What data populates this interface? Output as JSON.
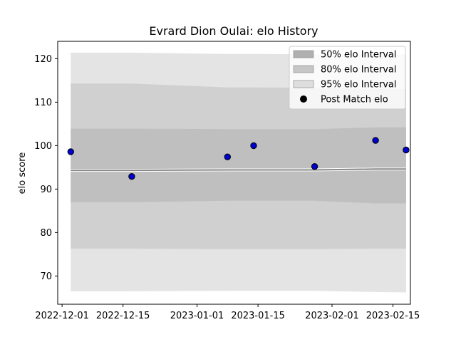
{
  "chart_data": {
    "type": "line",
    "title": "Evrard Dion Oulai: elo History",
    "xlabel": "",
    "ylabel": "elo score",
    "xlim": [
      "2022-11-30",
      "2023-02-19"
    ],
    "ylim": [
      63.5,
      124
    ],
    "x_ticks": [
      "2022-12-01",
      "2022-12-15",
      "2023-01-01",
      "2023-01-15",
      "2023-02-01",
      "2023-02-15"
    ],
    "y_ticks": [
      70,
      80,
      90,
      100,
      110,
      120
    ],
    "grid": false,
    "legend_position": "top-right",
    "series": [
      {
        "name": "95% elo Interval",
        "kind": "band",
        "color": "#e4e4e4",
        "x": [
          "2022-12-03",
          "2022-12-17",
          "2023-01-08",
          "2023-01-14",
          "2023-01-28",
          "2023-02-11",
          "2023-02-18"
        ],
        "lower": [
          66.5,
          66.5,
          66.6,
          66.6,
          66.6,
          66.3,
          66.2
        ],
        "upper": [
          121.4,
          121.4,
          121.1,
          121.1,
          121.0,
          121.0,
          121.0
        ]
      },
      {
        "name": "80% elo Interval",
        "kind": "band",
        "color": "#d0d0d0",
        "x": [
          "2022-12-03",
          "2022-12-17",
          "2023-01-08",
          "2023-01-14",
          "2023-01-28",
          "2023-02-11",
          "2023-02-18"
        ],
        "lower": [
          76.3,
          76.3,
          76.2,
          76.2,
          76.2,
          76.3,
          76.3
        ],
        "upper": [
          114.3,
          114.3,
          113.4,
          113.4,
          113.3,
          113.0,
          113.0
        ]
      },
      {
        "name": "50% elo Interval",
        "kind": "band",
        "color": "#bfbfbf",
        "x": [
          "2022-12-03",
          "2022-12-17",
          "2023-01-08",
          "2023-01-14",
          "2023-01-28",
          "2023-02-11",
          "2023-02-18"
        ],
        "lower": [
          87.0,
          87.0,
          87.3,
          87.3,
          87.3,
          86.7,
          86.7
        ],
        "upper": [
          103.9,
          103.9,
          103.8,
          103.8,
          103.8,
          104.2,
          104.2
        ]
      },
      {
        "name": "",
        "kind": "line",
        "color": "#888888",
        "x": [
          "2022-12-03",
          "2022-12-17",
          "2023-01-08",
          "2023-01-14",
          "2023-01-28",
          "2023-02-11",
          "2023-02-18"
        ],
        "values": [
          94.3,
          94.3,
          94.4,
          94.4,
          94.4,
          94.6,
          94.6
        ]
      },
      {
        "name": "Post Match elo",
        "kind": "scatter",
        "color": "#0000cc",
        "x": [
          "2022-12-03",
          "2022-12-17",
          "2023-01-08",
          "2023-01-14",
          "2023-01-28",
          "2023-02-11",
          "2023-02-18"
        ],
        "values": [
          98.6,
          92.9,
          97.4,
          100.0,
          95.2,
          101.2,
          99.0
        ]
      }
    ],
    "legend": [
      {
        "label": "50% elo Interval",
        "color": "#b0b0b0",
        "kind": "patch"
      },
      {
        "label": "80% elo Interval",
        "color": "#c6c6c6",
        "kind": "patch"
      },
      {
        "label": "95% elo Interval",
        "color": "#dedede",
        "kind": "patch"
      },
      {
        "label": "Post Match elo",
        "color": "#000000",
        "kind": "marker"
      }
    ]
  }
}
